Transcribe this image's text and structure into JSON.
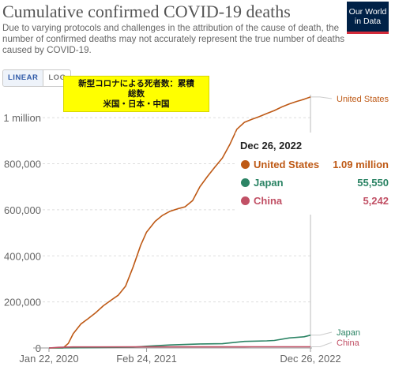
{
  "header": {
    "title": "Cumulative confirmed COVID-19 deaths",
    "subtitle": "Due to varying protocols and challenges in the attribution of the cause of death, the number of confirmed deaths may not accurately represent the true number of deaths caused by COVID-19.",
    "logo_line1": "Our World",
    "logo_line2": "in Data"
  },
  "controls": {
    "linear_label": "LINEAR",
    "log_label": "LOG",
    "active_scale": "linear"
  },
  "annotation": {
    "line1": "新型コロナによる死者数：累積",
    "line2": "総数",
    "line3": "米国・日本・中国",
    "background": "#ffff00"
  },
  "tooltip": {
    "date": "Dec 26, 2022",
    "rows": [
      {
        "name": "United States",
        "value": "1.09 million",
        "color": "#be5915"
      },
      {
        "name": "Japan",
        "value": "55,550",
        "color": "#2c8465"
      },
      {
        "name": "China",
        "value": "5,242",
        "color": "#c15065"
      }
    ]
  },
  "chart_data": {
    "type": "line",
    "title": "Cumulative confirmed COVID-19 deaths",
    "y_tick_labels": [
      "0",
      "200,000",
      "400,000",
      "600,000",
      "800,000",
      "1 million"
    ],
    "y_ticks": [
      0,
      200000,
      400000,
      600000,
      800000,
      1000000
    ],
    "x_tick_labels": [
      "Jan 22, 2020",
      "Feb 24, 2021",
      "Dec 26, 2022"
    ],
    "x_ticks": [
      "2020-01-22",
      "2021-02-24",
      "2022-12-26"
    ],
    "xlim": [
      "2020-01-22",
      "2022-12-26"
    ],
    "ylim": [
      0,
      1100000
    ],
    "grid": "horizontal-dashed",
    "legend": "labels at right end of lines",
    "series": [
      {
        "name": "United States",
        "color": "#be5915",
        "points": [
          [
            "2020-01-22",
            0
          ],
          [
            "2020-03-01",
            0
          ],
          [
            "2020-03-20",
            300
          ],
          [
            "2020-04-10",
            20000
          ],
          [
            "2020-04-30",
            62000
          ],
          [
            "2020-05-31",
            104000
          ],
          [
            "2020-06-30",
            127000
          ],
          [
            "2020-07-31",
            153000
          ],
          [
            "2020-08-31",
            183000
          ],
          [
            "2020-09-30",
            206000
          ],
          [
            "2020-10-31",
            229000
          ],
          [
            "2020-11-30",
            268000
          ],
          [
            "2020-12-31",
            352000
          ],
          [
            "2021-01-31",
            446000
          ],
          [
            "2021-02-24",
            503000
          ],
          [
            "2021-03-31",
            550000
          ],
          [
            "2021-04-30",
            576000
          ],
          [
            "2021-05-31",
            594000
          ],
          [
            "2021-06-30",
            604000
          ],
          [
            "2021-07-31",
            613000
          ],
          [
            "2021-08-31",
            640000
          ],
          [
            "2021-09-30",
            700000
          ],
          [
            "2021-10-31",
            745000
          ],
          [
            "2021-11-30",
            785000
          ],
          [
            "2021-12-31",
            825000
          ],
          [
            "2022-01-31",
            885000
          ],
          [
            "2022-02-28",
            950000
          ],
          [
            "2022-03-31",
            980000
          ],
          [
            "2022-04-30",
            993000
          ],
          [
            "2022-05-31",
            1005000
          ],
          [
            "2022-06-30",
            1018000
          ],
          [
            "2022-07-31",
            1031000
          ],
          [
            "2022-08-31",
            1047000
          ],
          [
            "2022-09-30",
            1060000
          ],
          [
            "2022-10-31",
            1071000
          ],
          [
            "2022-11-30",
            1080000
          ],
          [
            "2022-12-26",
            1090000
          ]
        ]
      },
      {
        "name": "Japan",
        "color": "#2c8465",
        "points": [
          [
            "2020-01-22",
            0
          ],
          [
            "2020-05-31",
            900
          ],
          [
            "2020-12-31",
            3500
          ],
          [
            "2021-02-24",
            7500
          ],
          [
            "2021-05-31",
            13000
          ],
          [
            "2021-09-30",
            17500
          ],
          [
            "2021-12-31",
            18400
          ],
          [
            "2022-03-31",
            28500
          ],
          [
            "2022-06-30",
            31000
          ],
          [
            "2022-07-31",
            32500
          ],
          [
            "2022-09-30",
            43500
          ],
          [
            "2022-10-31",
            46000
          ],
          [
            "2022-11-30",
            48500
          ],
          [
            "2022-12-26",
            55550
          ]
        ]
      },
      {
        "name": "China",
        "color": "#c15065",
        "points": [
          [
            "2020-01-22",
            17
          ],
          [
            "2020-02-29",
            2900
          ],
          [
            "2020-04-30",
            4600
          ],
          [
            "2021-02-24",
            4800
          ],
          [
            "2022-03-31",
            4900
          ],
          [
            "2022-04-30",
            5100
          ],
          [
            "2022-12-26",
            5242
          ]
        ]
      }
    ]
  }
}
